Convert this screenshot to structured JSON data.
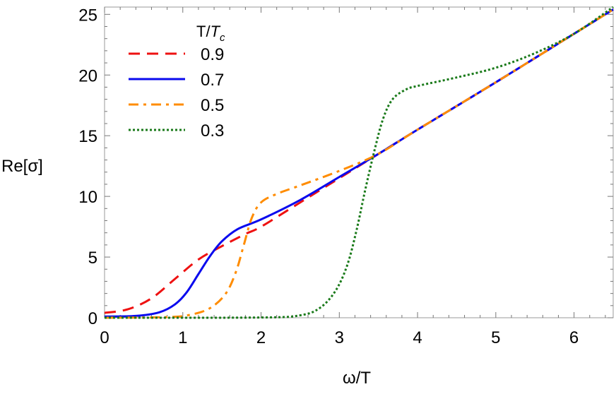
{
  "chart_data": {
    "type": "line",
    "xlabel": "ω/T",
    "ylabel": "Re[σ]",
    "xlim": [
      0,
      6.5
    ],
    "ylim": [
      0,
      25.6
    ],
    "xticks": [
      "0",
      "1",
      "2",
      "3",
      "4",
      "5",
      "6"
    ],
    "yticks": [
      "0",
      "5",
      "10",
      "15",
      "20",
      "25"
    ],
    "grid": false,
    "legend": {
      "title_main": "T/",
      "title_sub_var": "T",
      "title_sub": "c",
      "placement": "top-left"
    },
    "series": [
      {
        "name": "0.9",
        "color": "#ee1111",
        "dash": "dashed",
        "x": [
          0,
          0.3,
          0.6,
          0.9,
          1.2,
          1.5,
          1.8,
          2.0,
          2.5,
          3.0,
          3.5,
          4.0,
          5.0,
          6.0,
          6.5
        ],
        "y": [
          0.4,
          0.7,
          1.6,
          3.2,
          4.8,
          5.9,
          6.9,
          7.5,
          9.5,
          11.5,
          13.5,
          15.5,
          19.4,
          23.4,
          25.4
        ]
      },
      {
        "name": "0.7",
        "color": "#0a0aee",
        "dash": "solid",
        "x": [
          0,
          0.4,
          0.7,
          0.9,
          1.05,
          1.2,
          1.35,
          1.5,
          1.7,
          2.0,
          2.5,
          3.0,
          3.5,
          4.0,
          5.0,
          6.0,
          6.5
        ],
        "y": [
          0.1,
          0.15,
          0.45,
          1.1,
          2.1,
          3.6,
          5.1,
          6.3,
          7.3,
          8.1,
          9.7,
          11.6,
          13.5,
          15.5,
          19.4,
          23.4,
          25.4
        ]
      },
      {
        "name": "0.5",
        "color": "#ff8c00",
        "dash": "dashdot",
        "x": [
          0,
          0.8,
          1.1,
          1.35,
          1.55,
          1.68,
          1.78,
          1.88,
          2.0,
          2.2,
          2.5,
          3.0,
          3.5,
          4.0,
          5.0,
          6.0,
          6.5
        ],
        "y": [
          0,
          0.05,
          0.25,
          0.8,
          2.0,
          3.8,
          6.0,
          8.2,
          9.5,
          10.2,
          10.9,
          12.1,
          13.5,
          15.5,
          19.4,
          23.4,
          25.4
        ]
      },
      {
        "name": "0.3",
        "color": "#1a7a1a",
        "dash": "dotted",
        "x": [
          0,
          2.0,
          2.5,
          2.75,
          2.95,
          3.1,
          3.22,
          3.33,
          3.45,
          3.56,
          3.68,
          3.85,
          4.0,
          4.5,
          5.0,
          5.5,
          6.0,
          6.5
        ],
        "y": [
          0,
          0.02,
          0.2,
          0.8,
          2.2,
          4.3,
          7.2,
          10.5,
          13.8,
          16.4,
          18.0,
          18.8,
          19.1,
          19.8,
          20.6,
          21.8,
          23.4,
          25.6
        ]
      }
    ]
  }
}
